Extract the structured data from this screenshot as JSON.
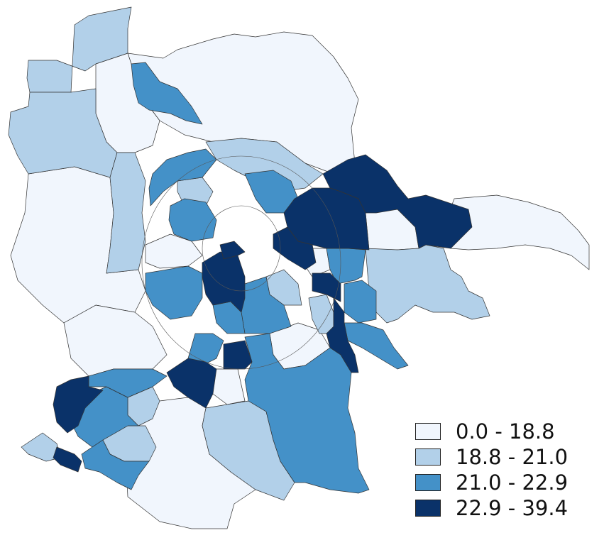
{
  "colors": {
    "class1": "#f1f6fd",
    "class2": "#b2d0e9",
    "class3": "#4491c8",
    "class4": "#0a3269",
    "border": "#333333",
    "background": "#ffffff"
  },
  "legend": {
    "items": [
      {
        "label": "0.0 - 18.8",
        "class": "class1"
      },
      {
        "label": "18.8 - 21.0",
        "class": "class2"
      },
      {
        "label": "21.0 - 22.9",
        "class": "class3"
      },
      {
        "label": "22.9 - 39.4",
        "class": "class4"
      }
    ]
  }
}
